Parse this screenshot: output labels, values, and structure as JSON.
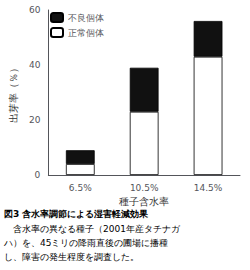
{
  "chart_data": {
    "type": "bar",
    "title": "図3 含水率調節による湿害軽減効果",
    "annotations": [
      "　含水率の異なる種子（2001年産タチナガ",
      "ハ）を、45ミリの降雨直後の圃場に播種",
      "し、障害の発生程度を調査した。"
    ],
    "xlabel": "種子含水率",
    "ylabel": "出芽率（％）",
    "categories": [
      "6.5%",
      "10.5%",
      "14.5%"
    ],
    "series": [
      {
        "name": "正常個体",
        "color": "#ffffff",
        "values": [
          4,
          23,
          43
        ]
      },
      {
        "name": "不良個体",
        "color": "#111111",
        "values": [
          5,
          16,
          13
        ]
      }
    ],
    "stacked": true,
    "ylim": [
      0,
      60
    ],
    "yticks": [
      0,
      20,
      40,
      60
    ],
    "grid": false,
    "legend": "upper left"
  }
}
